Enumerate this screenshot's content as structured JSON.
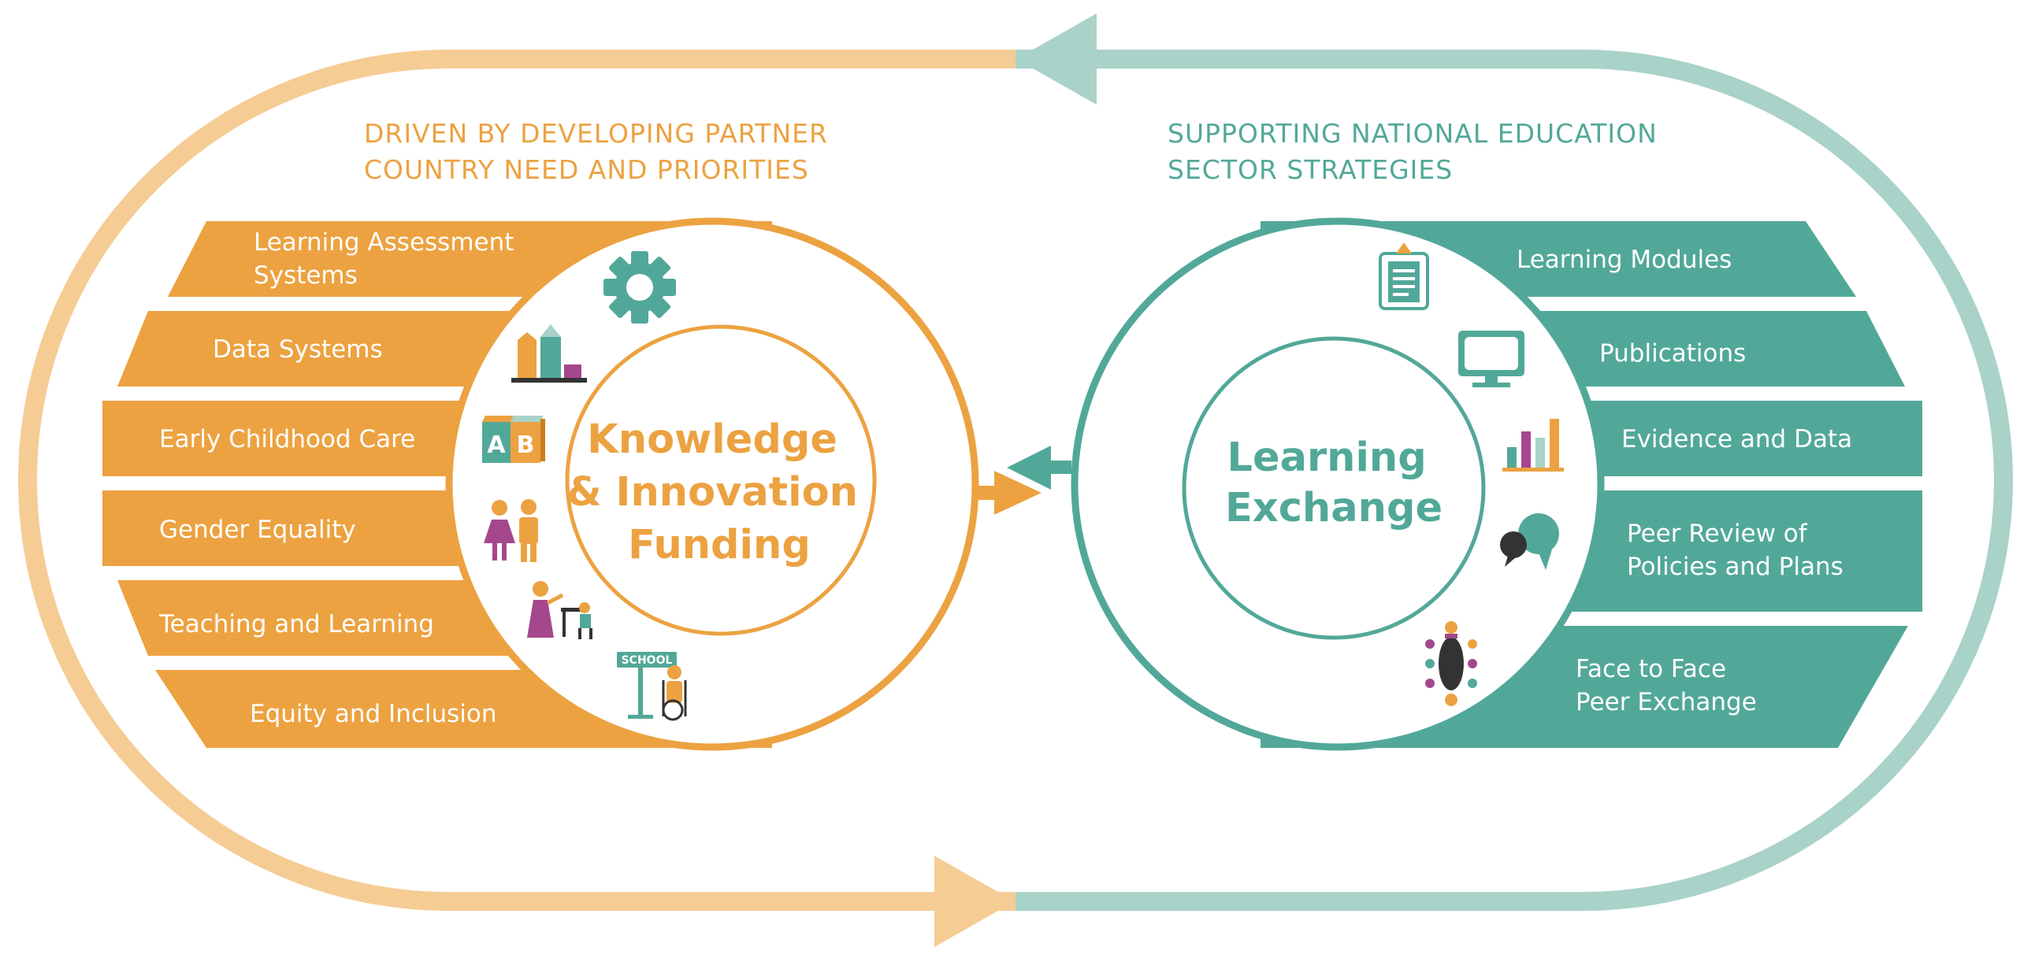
{
  "colors": {
    "orange": "#eca241",
    "orange_light": "#f6cc95",
    "teal": "#52a898",
    "teal_light": "#a9d2c8",
    "magenta": "#a5478d",
    "purple": "#6b4c8f"
  },
  "left": {
    "header": [
      "DRIVEN BY DEVELOPING PARTNER",
      "COUNTRY NEED AND PRIORITIES"
    ],
    "center": [
      "Knowledge",
      "& Innovation",
      "Funding"
    ],
    "items": [
      {
        "label": [
          "Learning Assessment",
          "Systems"
        ],
        "icon": "gear-icon"
      },
      {
        "label": [
          "Data Systems"
        ],
        "icon": "bar-chart-icon"
      },
      {
        "label": [
          "Early Childhood Care"
        ],
        "icon": "alphabet-blocks-icon"
      },
      {
        "label": [
          "Gender Equality"
        ],
        "icon": "woman-man-icon"
      },
      {
        "label": [
          "Teaching and Learning"
        ],
        "icon": "teacher-student-icon"
      },
      {
        "label": [
          "Equity and Inclusion"
        ],
        "icon": "school-sign-wheelchair-icon"
      }
    ],
    "school_sign": "SCHOOL"
  },
  "right": {
    "header": [
      "SUPPORTING NATIONAL EDUCATION",
      "SECTOR STRATEGIES"
    ],
    "center": [
      "Learning",
      "Exchange"
    ],
    "items": [
      {
        "label": [
          "Learning Modules"
        ],
        "icon": "clipboard-icon"
      },
      {
        "label": [
          "Publications"
        ],
        "icon": "monitor-icon"
      },
      {
        "label": [
          "Evidence and Data"
        ],
        "icon": "bar-chart-icon"
      },
      {
        "label": [
          "Peer Review of",
          "Policies and Plans"
        ],
        "icon": "speech-bubbles-icon"
      },
      {
        "label": [
          "Face to Face",
          "Peer Exchange"
        ],
        "icon": "meeting-table-icon"
      }
    ]
  }
}
